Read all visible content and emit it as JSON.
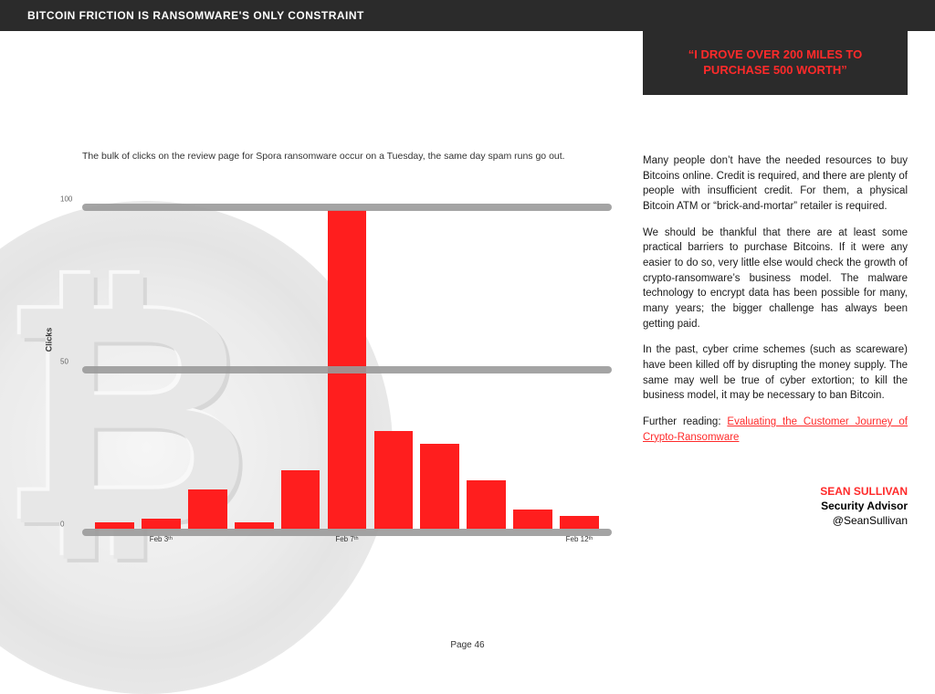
{
  "header": {
    "title": "BITCOIN FRICTION IS RANSOMWARE'S ONLY CONSTRAINT"
  },
  "quote": {
    "text": "“I DROVE OVER 200 MILES TO PURCHASE 500 WORTH”"
  },
  "chart": {
    "caption": "The bulk of clicks on the review page for Spora ransomware occur on a Tuesday, the same day spam runs go out.",
    "type": "bar",
    "ylabel": "Clicks",
    "ylim": [
      0,
      110
    ],
    "yticks": [
      0,
      50,
      100
    ],
    "grid_color": "#9a9a9a",
    "bar_color": "#ff1e1e",
    "bars": [
      {
        "label": "",
        "value": 2
      },
      {
        "label": "Feb 3ᵗʰ",
        "value": 3
      },
      {
        "label": "",
        "value": 12
      },
      {
        "label": "",
        "value": 2
      },
      {
        "label": "",
        "value": 18
      },
      {
        "label": "Feb 7ᵗʰ",
        "value": 98
      },
      {
        "label": "",
        "value": 30
      },
      {
        "label": "",
        "value": 26
      },
      {
        "label": "",
        "value": 15
      },
      {
        "label": "",
        "value": 6
      },
      {
        "label": "Feb 12ᵗʰ",
        "value": 4
      }
    ]
  },
  "paragraphs": [
    "Many people don’t have the needed resources to buy Bitcoins online. Credit is required, and there are plenty of people with insufficient credit. For them, a physical Bitcoin ATM or “brick-and-mortar” retailer is required.",
    "We should be thankful that there are at least some practical barriers to purchase Bitcoins. If it were any easier to do so, very little else would check the growth of crypto-ransomware’s business model. The malware technology to encrypt data has been possible for many, many years; the bigger challenge has always been getting paid.",
    "In the past, cyber crime schemes (such as scareware) have been killed off by disrupting the money supply. The same may well be true of cyber extortion; to kill the business model, it may be necessary to ban Bitcoin."
  ],
  "further_reading": {
    "prefix": "Further reading: ",
    "link_text": "Evaluating the Customer Journey of Crypto-Ransomware"
  },
  "author": {
    "name": "SEAN SULLIVAN",
    "title": "Security Advisor",
    "handle": "@SeanSullivan"
  },
  "page": {
    "label": "Page 46"
  },
  "colors": {
    "accent": "#ff2a2a",
    "dark": "#2b2b2b",
    "text": "#1a1a1a"
  }
}
